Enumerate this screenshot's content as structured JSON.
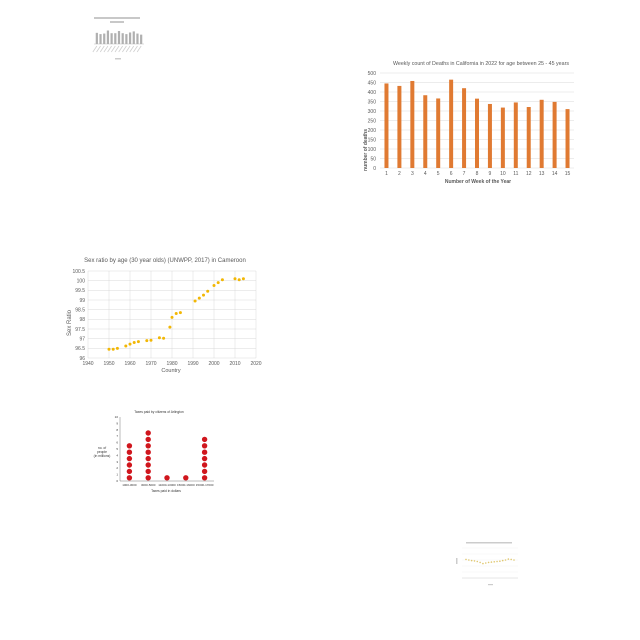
{
  "chart_data": [
    {
      "type": "bar",
      "title": "",
      "xlabel": "",
      "ylabel": "",
      "categories": [
        "",
        "",
        "",
        "",
        "",
        "",
        "",
        "",
        "",
        "",
        "",
        "",
        ""
      ],
      "values": [
        0.62,
        0.55,
        0.58,
        0.75,
        0.6,
        0.6,
        0.72,
        0.6,
        0.55,
        0.64,
        0.7,
        0.58,
        0.52
      ],
      "colors": {
        "bar": "#b0b0b0"
      }
    },
    {
      "type": "bar",
      "title": "Weekly count of Deaths in California in 2022 for age between 25 - 45 years",
      "xlabel": "Number of Week of the Year",
      "ylabel": "number of deaths",
      "categories": [
        "1",
        "2",
        "3",
        "4",
        "5",
        "6",
        "7",
        "8",
        "9",
        "10",
        "11",
        "12",
        "13",
        "14",
        "15"
      ],
      "values": [
        445,
        432,
        458,
        383,
        366,
        465,
        420,
        365,
        337,
        318,
        345,
        321,
        359,
        348,
        310
      ],
      "yticks": [
        "0",
        "50",
        "100",
        "150",
        "200",
        "250",
        "300",
        "350",
        "400",
        "450",
        "500"
      ],
      "ylim": [
        0,
        500
      ],
      "grid": true,
      "colors": {
        "bar": "#e07a32",
        "grid": "#d9d9d9"
      }
    },
    {
      "type": "scatter",
      "title": "Sex ratio by age (30 year olds) (UNWPP, 2017) in Cameroon",
      "xlabel": "Country",
      "ylabel": "Sex Ratio",
      "xticks": [
        "1940",
        "1950",
        "1960",
        "1970",
        "1980",
        "1990",
        "2000",
        "2010",
        "2020"
      ],
      "yticks": [
        "96",
        "96.5",
        "97",
        "97.5",
        "98",
        "98.5",
        "99",
        "99.5",
        "100",
        "100.5"
      ],
      "xlim": [
        1940,
        2020
      ],
      "ylim": [
        96,
        100.5
      ],
      "grid": true,
      "x": [
        1950,
        1952,
        1954,
        1958,
        1960,
        1962,
        1964,
        1968,
        1970,
        1974,
        1976,
        1979,
        1980,
        1982,
        1984,
        1991,
        1993,
        1995,
        1997,
        2000,
        2002,
        2004,
        2010,
        2012,
        2014
      ],
      "y": [
        96.45,
        96.45,
        96.5,
        96.62,
        96.72,
        96.8,
        96.85,
        96.9,
        96.92,
        97.05,
        97.02,
        97.6,
        98.1,
        98.3,
        98.35,
        98.95,
        99.1,
        99.25,
        99.45,
        99.75,
        99.9,
        100.05,
        100.1,
        100.05,
        100.1
      ],
      "colors": {
        "marker": "#f2b705",
        "grid": "#d9d9d9"
      }
    },
    {
      "type": "dot",
      "title": "Taxes paid by citizens of Arlington",
      "xlabel": "Taxes paid in dollars",
      "ylabel": "no. of people (in millions)",
      "categories": [
        "1000-3000",
        "3000-5000",
        "11000-13000",
        "15000-16000",
        "15000-17000"
      ],
      "values": [
        6,
        8,
        1,
        1,
        7
      ],
      "yticks": [
        "0",
        "1",
        "2",
        "3",
        "4",
        "5",
        "6",
        "7",
        "8",
        "9",
        "10"
      ],
      "ylim": [
        0,
        10
      ],
      "colors": {
        "marker": "#d0161d"
      }
    },
    {
      "type": "scatter",
      "title": "",
      "xlabel": "",
      "ylabel": "",
      "x": [
        1,
        2,
        3,
        4,
        5,
        6,
        7,
        8,
        9,
        10,
        11,
        12,
        13,
        14,
        15,
        16,
        17,
        18
      ],
      "y": [
        0.62,
        0.6,
        0.58,
        0.57,
        0.55,
        0.52,
        0.48,
        0.5,
        0.52,
        0.53,
        0.54,
        0.55,
        0.56,
        0.58,
        0.6,
        0.63,
        0.62,
        0.6
      ],
      "colors": {
        "marker": "#e0c870"
      }
    }
  ]
}
